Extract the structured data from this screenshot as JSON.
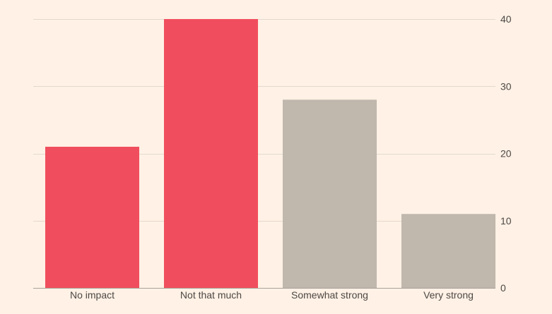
{
  "chart_data": {
    "type": "bar",
    "categories": [
      "No impact",
      "Not that much",
      "Somewhat strong",
      "Very strong"
    ],
    "values": [
      21,
      40,
      28,
      11
    ],
    "bar_colors": [
      "#f04e5e",
      "#f04e5e",
      "#c0b7ad",
      "#c0b7ad"
    ],
    "title": "",
    "xlabel": "",
    "ylabel": "",
    "ylim": [
      0,
      40
    ],
    "yticks": [
      0,
      10,
      20,
      30,
      40
    ],
    "yaxis_position": "right",
    "grid": true,
    "background": "#fff1e5"
  }
}
